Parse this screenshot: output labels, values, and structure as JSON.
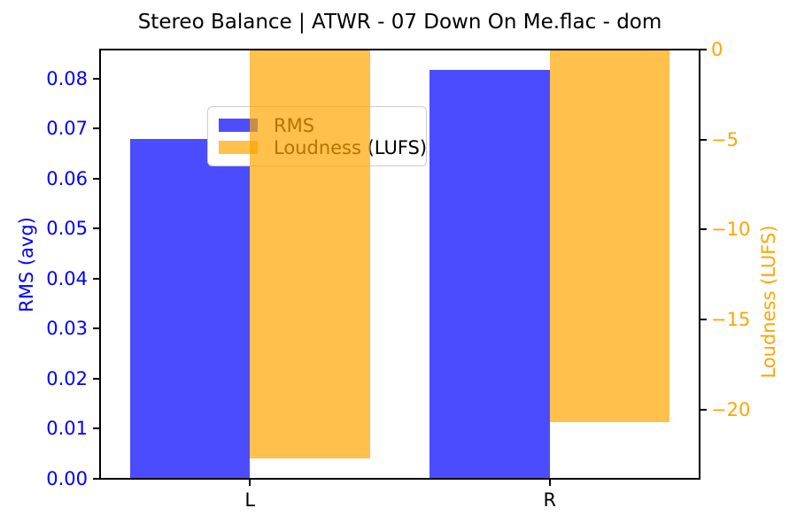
{
  "title": "Stereo Balance | ATWR - 07 Down On Me.flac - dom",
  "legend": {
    "items": [
      {
        "label": "RMS",
        "swatch_color": "#4d4dff"
      },
      {
        "label": "Loudness (LUFS)",
        "swatch_color": "#ffc04d"
      }
    ]
  },
  "chart_data": {
    "type": "bar",
    "title": "Stereo Balance | ATWR - 07 Down On Me.flac - dom",
    "categories": [
      "L",
      "R"
    ],
    "series": [
      {
        "name": "RMS",
        "axis": "left",
        "color": "rgba(0,0,255,0.7)",
        "values": [
          0.0679,
          0.0817
        ]
      },
      {
        "name": "Loudness (LUFS)",
        "axis": "right",
        "color": "rgba(255,165,0,0.7)",
        "values": [
          -22.7,
          -20.7
        ]
      }
    ],
    "left_axis": {
      "label": "RMS (avg)",
      "color": "#0000ff",
      "ylim": [
        0,
        0.0858
      ],
      "ticks": [
        0,
        0.01,
        0.02,
        0.03,
        0.04,
        0.05,
        0.06,
        0.07,
        0.08
      ],
      "tick_labels": [
        "0.00",
        "0.01",
        "0.02",
        "0.03",
        "0.04",
        "0.05",
        "0.06",
        "0.07",
        "0.08"
      ]
    },
    "right_axis": {
      "label": "Loudness (LUFS)",
      "color": "#ffa500",
      "ylim": [
        -23.835,
        0
      ],
      "ticks": [
        0,
        -5,
        -10,
        -15,
        -20
      ],
      "tick_labels": [
        "0",
        "−5",
        "−10",
        "−15",
        "−20"
      ]
    },
    "x_axis": {
      "xlim": [
        -0.5,
        1.5
      ],
      "tick_labels": [
        "L",
        "R"
      ],
      "bar_width": 0.4
    },
    "legend_position": "upper left",
    "grid": false
  }
}
